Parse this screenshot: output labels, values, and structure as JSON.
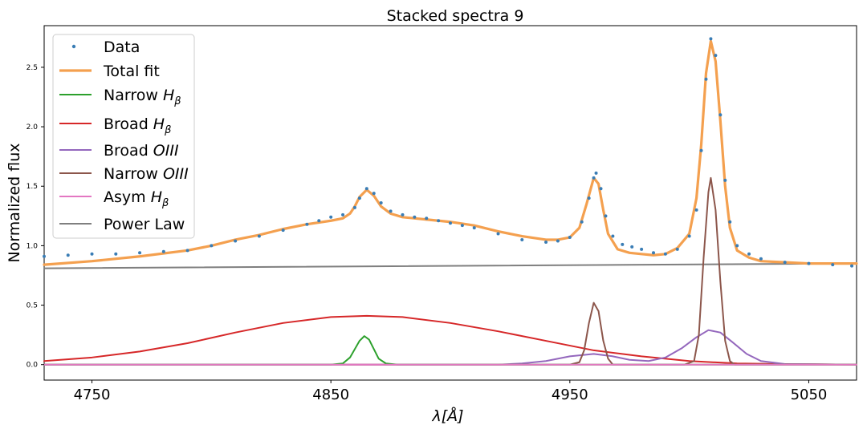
{
  "chart_data": {
    "type": "line",
    "title": "Stacked spectra 9",
    "xlabel": "λ[Å]",
    "ylabel": "Normalized flux",
    "xlim": [
      4730,
      5070
    ],
    "ylim": [
      -0.13,
      2.85
    ],
    "xticks": [
      4750,
      4850,
      4950,
      5050
    ],
    "yticks": [
      0.0,
      0.5,
      1.0,
      1.5,
      2.0,
      2.5
    ],
    "grid": false,
    "legend_position": "top-left",
    "series": [
      {
        "name": "Data",
        "style": "points",
        "color": "#3a7db5",
        "points": [
          [
            4730,
            0.91
          ],
          [
            4740,
            0.92
          ],
          [
            4750,
            0.93
          ],
          [
            4760,
            0.93
          ],
          [
            4770,
            0.94
          ],
          [
            4780,
            0.95
          ],
          [
            4790,
            0.96
          ],
          [
            4800,
            1.0
          ],
          [
            4810,
            1.04
          ],
          [
            4820,
            1.08
          ],
          [
            4830,
            1.13
          ],
          [
            4840,
            1.18
          ],
          [
            4845,
            1.21
          ],
          [
            4850,
            1.24
          ],
          [
            4855,
            1.26
          ],
          [
            4860,
            1.32
          ],
          [
            4862,
            1.4
          ],
          [
            4865,
            1.48
          ],
          [
            4868,
            1.44
          ],
          [
            4871,
            1.36
          ],
          [
            4875,
            1.29
          ],
          [
            4880,
            1.26
          ],
          [
            4885,
            1.24
          ],
          [
            4890,
            1.23
          ],
          [
            4895,
            1.21
          ],
          [
            4900,
            1.19
          ],
          [
            4905,
            1.17
          ],
          [
            4910,
            1.15
          ],
          [
            4920,
            1.1
          ],
          [
            4930,
            1.05
          ],
          [
            4940,
            1.03
          ],
          [
            4945,
            1.04
          ],
          [
            4950,
            1.07
          ],
          [
            4955,
            1.2
          ],
          [
            4958,
            1.4
          ],
          [
            4960,
            1.57
          ],
          [
            4961,
            1.61
          ],
          [
            4963,
            1.48
          ],
          [
            4965,
            1.25
          ],
          [
            4968,
            1.08
          ],
          [
            4972,
            1.01
          ],
          [
            4976,
            0.99
          ],
          [
            4980,
            0.97
          ],
          [
            4985,
            0.94
          ],
          [
            4990,
            0.93
          ],
          [
            4995,
            0.97
          ],
          [
            5000,
            1.08
          ],
          [
            5003,
            1.3
          ],
          [
            5005,
            1.8
          ],
          [
            5007,
            2.4
          ],
          [
            5009,
            2.74
          ],
          [
            5011,
            2.6
          ],
          [
            5013,
            2.1
          ],
          [
            5015,
            1.55
          ],
          [
            5017,
            1.2
          ],
          [
            5020,
            1.0
          ],
          [
            5025,
            0.93
          ],
          [
            5030,
            0.89
          ],
          [
            5040,
            0.86
          ],
          [
            5050,
            0.85
          ],
          [
            5060,
            0.84
          ],
          [
            5068,
            0.83
          ]
        ]
      },
      {
        "name": "Total fit",
        "style": "line",
        "color": "#f4a04f",
        "points": [
          [
            4730,
            0.84
          ],
          [
            4750,
            0.87
          ],
          [
            4770,
            0.91
          ],
          [
            4790,
            0.96
          ],
          [
            4800,
            1.0
          ],
          [
            4810,
            1.05
          ],
          [
            4820,
            1.09
          ],
          [
            4830,
            1.14
          ],
          [
            4840,
            1.18
          ],
          [
            4850,
            1.21
          ],
          [
            4855,
            1.23
          ],
          [
            4858,
            1.27
          ],
          [
            4860,
            1.33
          ],
          [
            4862,
            1.41
          ],
          [
            4865,
            1.47
          ],
          [
            4868,
            1.42
          ],
          [
            4871,
            1.33
          ],
          [
            4875,
            1.27
          ],
          [
            4880,
            1.24
          ],
          [
            4890,
            1.22
          ],
          [
            4900,
            1.2
          ],
          [
            4910,
            1.17
          ],
          [
            4920,
            1.12
          ],
          [
            4930,
            1.08
          ],
          [
            4940,
            1.05
          ],
          [
            4945,
            1.05
          ],
          [
            4950,
            1.07
          ],
          [
            4954,
            1.15
          ],
          [
            4957,
            1.35
          ],
          [
            4960,
            1.57
          ],
          [
            4962,
            1.52
          ],
          [
            4964,
            1.3
          ],
          [
            4966,
            1.1
          ],
          [
            4970,
            0.97
          ],
          [
            4975,
            0.94
          ],
          [
            4980,
            0.93
          ],
          [
            4985,
            0.92
          ],
          [
            4990,
            0.93
          ],
          [
            4995,
            0.98
          ],
          [
            5000,
            1.1
          ],
          [
            5003,
            1.4
          ],
          [
            5005,
            1.85
          ],
          [
            5007,
            2.45
          ],
          [
            5009,
            2.72
          ],
          [
            5011,
            2.55
          ],
          [
            5013,
            2.05
          ],
          [
            5015,
            1.5
          ],
          [
            5017,
            1.15
          ],
          [
            5020,
            0.96
          ],
          [
            5025,
            0.9
          ],
          [
            5030,
            0.87
          ],
          [
            5040,
            0.86
          ],
          [
            5050,
            0.85
          ],
          [
            5070,
            0.85
          ]
        ]
      },
      {
        "name": "Narrow H_β",
        "style": "line",
        "color": "#2ca02c",
        "points": [
          [
            4730,
            0
          ],
          [
            4850,
            0
          ],
          [
            4855,
            0.01
          ],
          [
            4858,
            0.06
          ],
          [
            4860,
            0.13
          ],
          [
            4862,
            0.2
          ],
          [
            4864,
            0.24
          ],
          [
            4866,
            0.21
          ],
          [
            4868,
            0.13
          ],
          [
            4870,
            0.05
          ],
          [
            4873,
            0.01
          ],
          [
            4878,
            0
          ],
          [
            5070,
            0
          ]
        ]
      },
      {
        "name": "Broad H_β",
        "style": "line",
        "color": "#d62728",
        "points": [
          [
            4730,
            0.03
          ],
          [
            4750,
            0.06
          ],
          [
            4770,
            0.11
          ],
          [
            4790,
            0.18
          ],
          [
            4810,
            0.27
          ],
          [
            4830,
            0.35
          ],
          [
            4850,
            0.4
          ],
          [
            4865,
            0.41
          ],
          [
            4880,
            0.4
          ],
          [
            4900,
            0.35
          ],
          [
            4920,
            0.28
          ],
          [
            4940,
            0.2
          ],
          [
            4960,
            0.12
          ],
          [
            4980,
            0.07
          ],
          [
            5000,
            0.03
          ],
          [
            5020,
            0.01
          ],
          [
            5040,
            0.005
          ],
          [
            5070,
            0
          ]
        ]
      },
      {
        "name": "Broad OIII",
        "style": "line",
        "color": "#9467bd",
        "points": [
          [
            4730,
            0
          ],
          [
            4920,
            0
          ],
          [
            4930,
            0.01
          ],
          [
            4940,
            0.03
          ],
          [
            4950,
            0.07
          ],
          [
            4960,
            0.09
          ],
          [
            4968,
            0.07
          ],
          [
            4975,
            0.04
          ],
          [
            4983,
            0.03
          ],
          [
            4990,
            0.06
          ],
          [
            4997,
            0.14
          ],
          [
            5003,
            0.23
          ],
          [
            5008,
            0.29
          ],
          [
            5013,
            0.27
          ],
          [
            5018,
            0.19
          ],
          [
            5024,
            0.09
          ],
          [
            5030,
            0.03
          ],
          [
            5040,
            0.005
          ],
          [
            5070,
            0
          ]
        ]
      },
      {
        "name": "Narrow OIII",
        "style": "line",
        "color": "#8c564b",
        "points": [
          [
            4730,
            0
          ],
          [
            4950,
            0
          ],
          [
            4954,
            0.02
          ],
          [
            4956,
            0.12
          ],
          [
            4958,
            0.35
          ],
          [
            4960,
            0.52
          ],
          [
            4962,
            0.45
          ],
          [
            4964,
            0.2
          ],
          [
            4966,
            0.05
          ],
          [
            4968,
            0
          ],
          [
            4998,
            0
          ],
          [
            5002,
            0.03
          ],
          [
            5004,
            0.25
          ],
          [
            5006,
            0.9
          ],
          [
            5008,
            1.45
          ],
          [
            5009,
            1.57
          ],
          [
            5011,
            1.3
          ],
          [
            5013,
            0.7
          ],
          [
            5015,
            0.2
          ],
          [
            5017,
            0.03
          ],
          [
            5019,
            0
          ],
          [
            5070,
            0
          ]
        ]
      },
      {
        "name": "Asym H_β",
        "style": "line",
        "color": "#e377c2",
        "points": [
          [
            4730,
            0
          ],
          [
            5070,
            0
          ]
        ]
      },
      {
        "name": "Power Law",
        "style": "line",
        "color": "#7f7f7f",
        "points": [
          [
            4730,
            0.81
          ],
          [
            5070,
            0.85
          ]
        ]
      }
    ]
  }
}
